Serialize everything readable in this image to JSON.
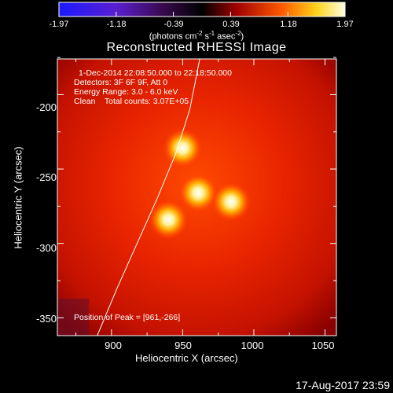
{
  "colorbar": {
    "ticks": [
      "-1.97",
      "-1.18",
      "-0.39",
      "0.39",
      "1.18",
      "1.97"
    ],
    "units_prefix": "(photons cm",
    "units_exp1": "-2",
    "units_mid1": " s",
    "units_exp2": "-1",
    "units_mid2": " asec",
    "units_exp3": "-2",
    "units_suffix": ")"
  },
  "chart_data": {
    "type": "heatmap",
    "title": "Reconstructed RHESSI Image",
    "xlabel": "Heliocentric X (arcsec)",
    "ylabel": "Heliocentric Y (arcsec)",
    "xlim": [
      862,
      1058
    ],
    "ylim": [
      -362,
      -176
    ],
    "xticks": [
      "900",
      "950",
      "1000",
      "1050"
    ],
    "yticks": [
      "-200",
      "-250",
      "-300",
      "-350"
    ],
    "xtick_values": [
      900,
      950,
      1000,
      1050
    ],
    "ytick_values": [
      -200,
      -250,
      -300,
      -350
    ],
    "sources": [
      {
        "x": 950,
        "y": -236
      },
      {
        "x": 961,
        "y": -266
      },
      {
        "x": 984,
        "y": -272
      },
      {
        "x": 940,
        "y": -284
      }
    ],
    "peak": {
      "x": 961,
      "y": -266
    },
    "limb_arc": [
      [
        962,
        -176
      ],
      [
        955,
        -210
      ],
      [
        945,
        -240
      ],
      [
        932,
        -270
      ],
      [
        918,
        -300
      ],
      [
        904,
        -330
      ],
      [
        890,
        -362
      ]
    ],
    "colorscale": [
      "#0000ff",
      "#4b0082",
      "#000000",
      "#8b0000",
      "#ff4500",
      "#ffd700",
      "#ffffff"
    ],
    "annotations": [
      "1-Dec-2014 22:08:50.000 to 22:18:50.000",
      "Detectors: 3F 6F 9F, Att 0",
      "Energy Range: 3.0 - 6.0 keV",
      "Clean    Total counts: 3.07E+05"
    ],
    "peak_text": "Position of Peak = [961,-266]"
  },
  "footer_timestamp": "17-Aug-2017 23:59"
}
